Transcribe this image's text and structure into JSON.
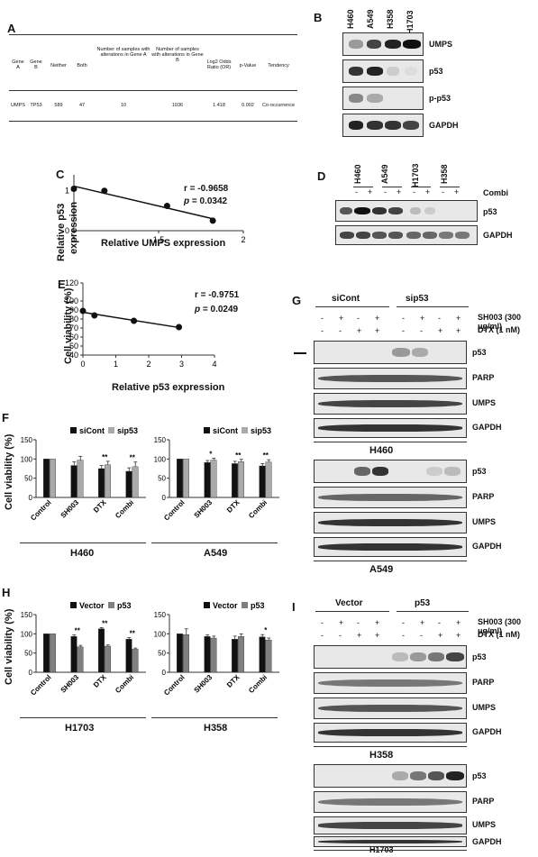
{
  "panels": {
    "A": "A",
    "B": "B",
    "C": "C",
    "D": "D",
    "E": "E",
    "F": "F",
    "G": "G",
    "H": "H",
    "I": "I"
  },
  "table_a": {
    "headers": [
      "Gene A",
      "Gene B",
      "Neither",
      "Both",
      "Number of samples with alterations in Gene A",
      "Number of samples with alterations in Gene B",
      "Log2 Odds Ratio (OR)",
      "p-Value",
      "Tendency"
    ],
    "row": [
      "UMPS",
      "TP53",
      "589",
      "47",
      "10",
      "1036",
      "1.418",
      "0.002",
      "Co-occurrence"
    ]
  },
  "blot_b": {
    "lanes": [
      "H460",
      "A549",
      "H358",
      "H1703"
    ],
    "bands": [
      "UMPS",
      "p53",
      "p-p53",
      "GAPDH"
    ]
  },
  "blot_d": {
    "lanes": [
      "H460",
      "A549",
      "H1703",
      "H358"
    ],
    "signs": [
      "-",
      "+",
      "-",
      "+",
      "-",
      "+",
      "-",
      "+"
    ],
    "combi_label": "Combi",
    "bands": [
      "p53",
      "GAPDH"
    ]
  },
  "chart_c": {
    "r": "r = -0.9658",
    "p_italic": "p",
    "p_val": " = 0.0342",
    "xlabel": "Relative UMPS expression",
    "ylabel1": "Relative p53",
    "ylabel2": "expression",
    "xticks": [
      "1",
      "1.5",
      "2"
    ],
    "yticks": [
      "0",
      "1"
    ]
  },
  "chart_e": {
    "r": "r = -0.9751",
    "p_italic": "p",
    "p_val": " = 0.0249",
    "xlabel": "Relative p53 expression",
    "ylabel": "Cell viability (%)",
    "xticks": [
      "0",
      "1",
      "2",
      "3",
      "4"
    ],
    "yticks": [
      "40",
      "50",
      "60",
      "70",
      "80",
      "90",
      "100",
      "120"
    ]
  },
  "blot_g": {
    "groups": [
      "siCont",
      "sip53"
    ],
    "row1_label": "SH003 (300 μg/ml)",
    "row2_label": "DTX (1 nM)",
    "row1": [
      "-",
      "+",
      "-",
      "+",
      "-",
      "+",
      "-",
      "+"
    ],
    "row2": [
      "-",
      "-",
      "+",
      "+",
      "-",
      "-",
      "+",
      "+"
    ],
    "bands": [
      "p53",
      "PARP",
      "UMPS",
      "GAPDH"
    ],
    "cell1": "H460",
    "cell2": "A549"
  },
  "blot_i": {
    "groups": [
      "Vector",
      "p53"
    ],
    "row1_label": "SH003 (300 μg/ml)",
    "row2_label": "DTX (1 nM)",
    "row1": [
      "-",
      "+",
      "-",
      "+",
      "-",
      "+",
      "-",
      "+"
    ],
    "row2": [
      "-",
      "-",
      "+",
      "+",
      "-",
      "-",
      "+",
      "+"
    ],
    "bands": [
      "p53",
      "PARP",
      "UMPS",
      "GAPDH"
    ],
    "cell1": "H358",
    "cell2": "H1703"
  },
  "chart_data": [
    {
      "id": "C",
      "type": "scatter",
      "xlabel": "Relative UMPS expression",
      "ylabel": "Relative p53 expression",
      "x": [
        1.0,
        1.18,
        1.55,
        1.82
      ],
      "y": [
        1.05,
        1.0,
        0.62,
        0.25
      ],
      "xlim": [
        1,
        2
      ],
      "ylim": [
        0,
        1.4
      ]
    },
    {
      "id": "E",
      "type": "scatter",
      "xlabel": "Relative p53 expression",
      "ylabel": "Cell viability (%)",
      "x": [
        0.0,
        0.35,
        1.55,
        2.92
      ],
      "y": [
        89,
        84,
        78,
        71
      ],
      "xlim": [
        0,
        4
      ],
      "ylim": [
        40,
        120
      ]
    },
    {
      "id": "F1",
      "type": "bar",
      "cell": "H460",
      "categories": [
        "Control",
        "SH003",
        "DTX",
        "Combi"
      ],
      "series": [
        {
          "name": "siCont",
          "color": "#111111",
          "values": [
            100,
            83,
            75,
            68
          ],
          "err": [
            0,
            10,
            8,
            9
          ]
        },
        {
          "name": "sip53",
          "color": "#aaaaaa",
          "values": [
            100,
            97,
            85,
            80
          ],
          "err": [
            0,
            10,
            9,
            12
          ]
        }
      ],
      "sig": [
        "",
        "",
        "**",
        "**"
      ],
      "ylabel": "Cell viability (%)",
      "yticks": [
        0,
        50,
        100,
        150
      ],
      "ylim": [
        0,
        150
      ]
    },
    {
      "id": "F2",
      "type": "bar",
      "cell": "A549",
      "categories": [
        "Control",
        "SH003",
        "DTX",
        "Combi"
      ],
      "series": [
        {
          "name": "siCont",
          "color": "#111111",
          "values": [
            100,
            91,
            88,
            82
          ],
          "err": [
            0,
            5,
            6,
            6
          ]
        },
        {
          "name": "sip53",
          "color": "#aaaaaa",
          "values": [
            100,
            97,
            93,
            92
          ],
          "err": [
            0,
            5,
            6,
            6
          ]
        }
      ],
      "sig": [
        "",
        "*",
        "**",
        "**"
      ],
      "yticks": [
        0,
        50,
        100,
        150
      ],
      "ylim": [
        0,
        150
      ]
    },
    {
      "id": "H1",
      "type": "bar",
      "cell": "H1703",
      "categories": [
        "Control",
        "SH003",
        "DTX",
        "Combi"
      ],
      "series": [
        {
          "name": "Vector",
          "color": "#111111",
          "values": [
            100,
            93,
            113,
            86
          ],
          "err": [
            0,
            4,
            3,
            4
          ]
        },
        {
          "name": "p53",
          "color": "#808080",
          "values": [
            100,
            66,
            68,
            60
          ],
          "err": [
            0,
            4,
            3,
            3
          ]
        }
      ],
      "sig": [
        "",
        "**",
        "**",
        "**"
      ],
      "ylabel": "Cell viability (%)",
      "yticks": [
        0,
        50,
        100,
        150
      ],
      "ylim": [
        0,
        150
      ]
    },
    {
      "id": "H2",
      "type": "bar",
      "cell": "H358",
      "categories": [
        "Control",
        "SH003",
        "DTX",
        "Combi"
      ],
      "series": [
        {
          "name": "Vector",
          "color": "#111111",
          "values": [
            100,
            93,
            86,
            92
          ],
          "err": [
            0,
            4,
            8,
            6
          ]
        },
        {
          "name": "p53",
          "color": "#808080",
          "values": [
            98,
            89,
            93,
            84
          ],
          "err": [
            15,
            5,
            7,
            5
          ]
        }
      ],
      "sig": [
        "",
        "",
        "",
        "*"
      ],
      "yticks": [
        0,
        50,
        100,
        150
      ],
      "ylim": [
        0,
        150
      ]
    }
  ]
}
